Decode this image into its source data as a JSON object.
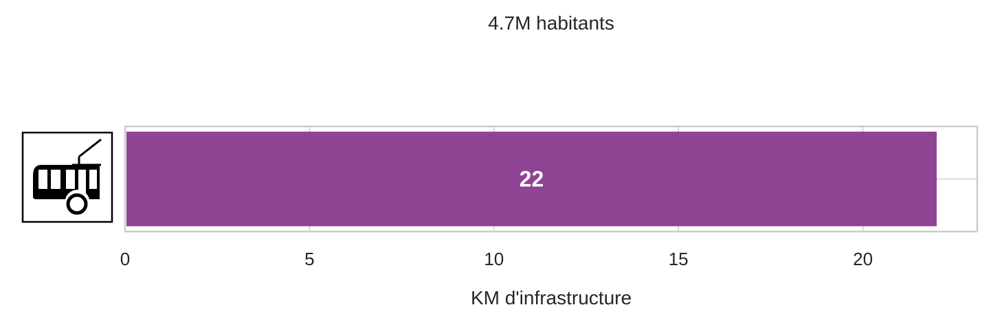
{
  "chart_data": {
    "type": "bar",
    "orientation": "horizontal",
    "title": "4.7M habitants",
    "xlabel": "KM d'infrastructure",
    "ylabel": "",
    "categories": [
      "trolleybus"
    ],
    "category_icons": [
      "trolleybus-icon"
    ],
    "values": [
      22
    ],
    "value_labels": [
      "22"
    ],
    "xlim": [
      0,
      23.1
    ],
    "xticks": [
      0,
      5,
      10,
      15,
      20
    ],
    "xtick_labels": [
      "0",
      "5",
      "10",
      "15",
      "20"
    ],
    "grid": true,
    "legend": "none"
  },
  "colors": {
    "bar": "#8e4393",
    "bar_label": "#ffffff",
    "text": "#262626",
    "frame": "#cccccc",
    "grid": "#cccccc",
    "icon": "#000000"
  }
}
